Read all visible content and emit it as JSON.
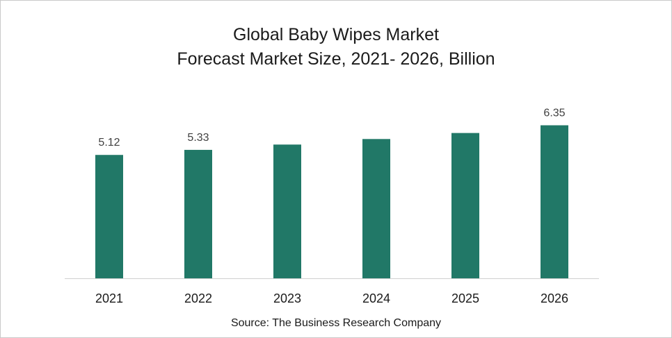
{
  "chart_data": {
    "type": "bar",
    "title": "Global Baby Wipes Market",
    "subtitle": "Forecast Market Size, 2021- 2026, Billion",
    "categories": [
      "2021",
      "2022",
      "2023",
      "2024",
      "2025",
      "2026"
    ],
    "values": [
      5.12,
      5.33,
      5.55,
      5.78,
      6.03,
      6.35
    ],
    "data_labels": [
      "5.12",
      "5.33",
      "",
      "",
      "",
      "6.35"
    ],
    "xlabel": "",
    "ylabel": "",
    "ylim": [
      0,
      7.2
    ],
    "grid": false,
    "legend": "none",
    "bar_color": "#217867"
  },
  "source": "Source: The Business Research Company"
}
